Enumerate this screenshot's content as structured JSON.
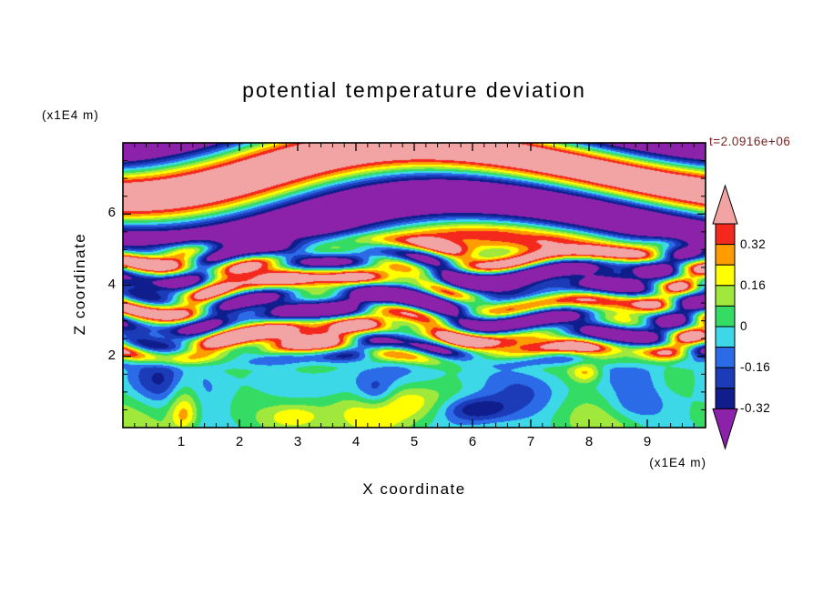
{
  "page": {
    "background": "#ffffff"
  },
  "chart_data": {
    "type": "heatmap",
    "title": "potential temperature deviation",
    "time_label": "t=2.0916e+06",
    "time_label_color": "#7a1f1f",
    "xlabel": "X coordinate",
    "ylabel": "Z coordinate",
    "x_unit": "(x1E4 m)",
    "z_unit": "(x1E4 m)",
    "x_range": [
      0,
      10
    ],
    "z_range": [
      0,
      8
    ],
    "x_ticks": [
      1,
      2,
      3,
      4,
      5,
      6,
      7,
      8,
      9
    ],
    "x_minor_step": 0.2,
    "z_ticks": [
      2,
      4,
      6
    ],
    "z_minor_step": 0.5,
    "colorbar": {
      "boundaries": [
        0.4,
        0.32,
        0.24,
        0.16,
        0.08,
        0,
        -0.08,
        -0.16,
        -0.24,
        -0.32
      ],
      "band_colors": [
        "#f5281e",
        "#ff9c00",
        "#ffff00",
        "#a0e83c",
        "#34dc64",
        "#3cd8e8",
        "#2b6be8",
        "#1c3bb8",
        "#0f1e8c"
      ],
      "over_color": "#f2a4a4",
      "under_color": "#8c22aa",
      "labels": [
        "0.32",
        "0.16",
        "0",
        "-0.16",
        "-0.32"
      ],
      "label_boundary_indexes": [
        1,
        3,
        5,
        7,
        9
      ]
    },
    "field": {
      "description": "Turbulent stratified potential-temperature deviation: weak (±0.1) convective mixed layer below z≈2 (green/cyan with warm plumes to +0.4 near x≈1 and x≈4.9, cool pockets to −0.35 near x≈6 and x≈4.3), strongly layered gravity-wave striations of ±0.5 for 2<z<5, and large-amplitude smooth wave patches |v|>0.4 (pink/purple) above z≈5.",
      "top": {
        "amp": 0.62,
        "kz": 2.2,
        "phase": 4.58,
        "w1_amp": 1.6,
        "w1_kx": 0.55,
        "w1_kz": 0.25,
        "blend": [
          4.6,
          5.6
        ]
      },
      "mid": {
        "amp": 0.42,
        "kz": 4.6,
        "phase": 2.64,
        "w1_amp": 2.1,
        "w1_kx": 0.85,
        "w1_kz": 0.4,
        "w2_amp": 1.2,
        "w2_kx": 2.3,
        "fine_amp": 0.16,
        "fine_kz": 9.5,
        "fine_w_amp": 2.4,
        "fine_kx": 1.35,
        "fine_phase": 1.0,
        "blend": [
          1.55,
          2.35
        ]
      },
      "bottom": {
        "terms": [
          [
            0.07,
            1.5,
            0.9,
            2.1
          ],
          [
            0.055,
            3.2,
            1.3,
            0.4
          ],
          [
            0.04,
            0.0,
            2.8,
            1.0
          ]
        ]
      },
      "blobs": [
        [
          1.05,
          0.85,
          0.3,
          0.8,
          0.3
        ],
        [
          1.05,
          0.3,
          0.22,
          0.4,
          0.14
        ],
        [
          4.85,
          0.75,
          0.85,
          0.6,
          0.34
        ],
        [
          2.95,
          0.3,
          0.45,
          0.35,
          0.2
        ],
        [
          7.95,
          1.55,
          0.26,
          0.28,
          0.26
        ],
        [
          6.05,
          0.5,
          0.6,
          0.38,
          -0.35
        ],
        [
          4.35,
          0.95,
          0.35,
          0.45,
          -0.28
        ],
        [
          0.75,
          1.25,
          0.7,
          0.6,
          -0.14
        ],
        [
          3.7,
          1.15,
          0.55,
          0.55,
          -0.13
        ],
        [
          7.05,
          0.95,
          0.85,
          0.7,
          -0.15
        ],
        [
          8.75,
          0.6,
          0.45,
          0.4,
          -0.1
        ],
        [
          9.45,
          1.3,
          0.4,
          0.5,
          0.1
        ],
        [
          3.5,
          2.45,
          3.2,
          0.42,
          0.2
        ],
        [
          6.3,
          3.75,
          2.6,
          0.55,
          -0.26
        ],
        [
          1.8,
          4.55,
          1.8,
          0.5,
          0.16
        ]
      ]
    }
  }
}
